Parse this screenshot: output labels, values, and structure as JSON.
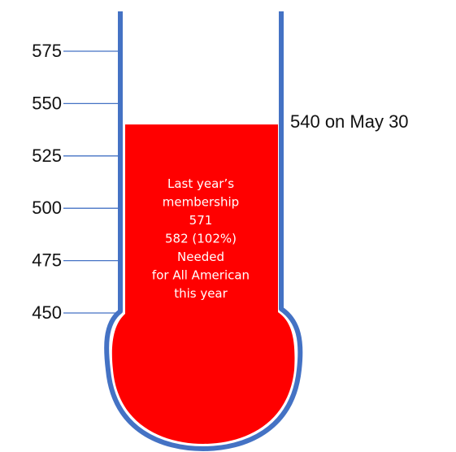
{
  "chart_data": {
    "type": "bar",
    "categories": [
      "Membership"
    ],
    "values": [
      540
    ],
    "ylim": [
      450,
      575
    ],
    "ticks": [
      "575",
      "550",
      "525",
      "500",
      "475",
      "450"
    ],
    "current_label": "540 on May 30",
    "note_lines": [
      "Last year’s",
      "membership",
      "571",
      "582 (102%)",
      "Needed",
      "for All American",
      "this year"
    ],
    "colors": {
      "fill": "#ff0000",
      "glass": "#4472c4",
      "tick": "#4472c4"
    }
  }
}
